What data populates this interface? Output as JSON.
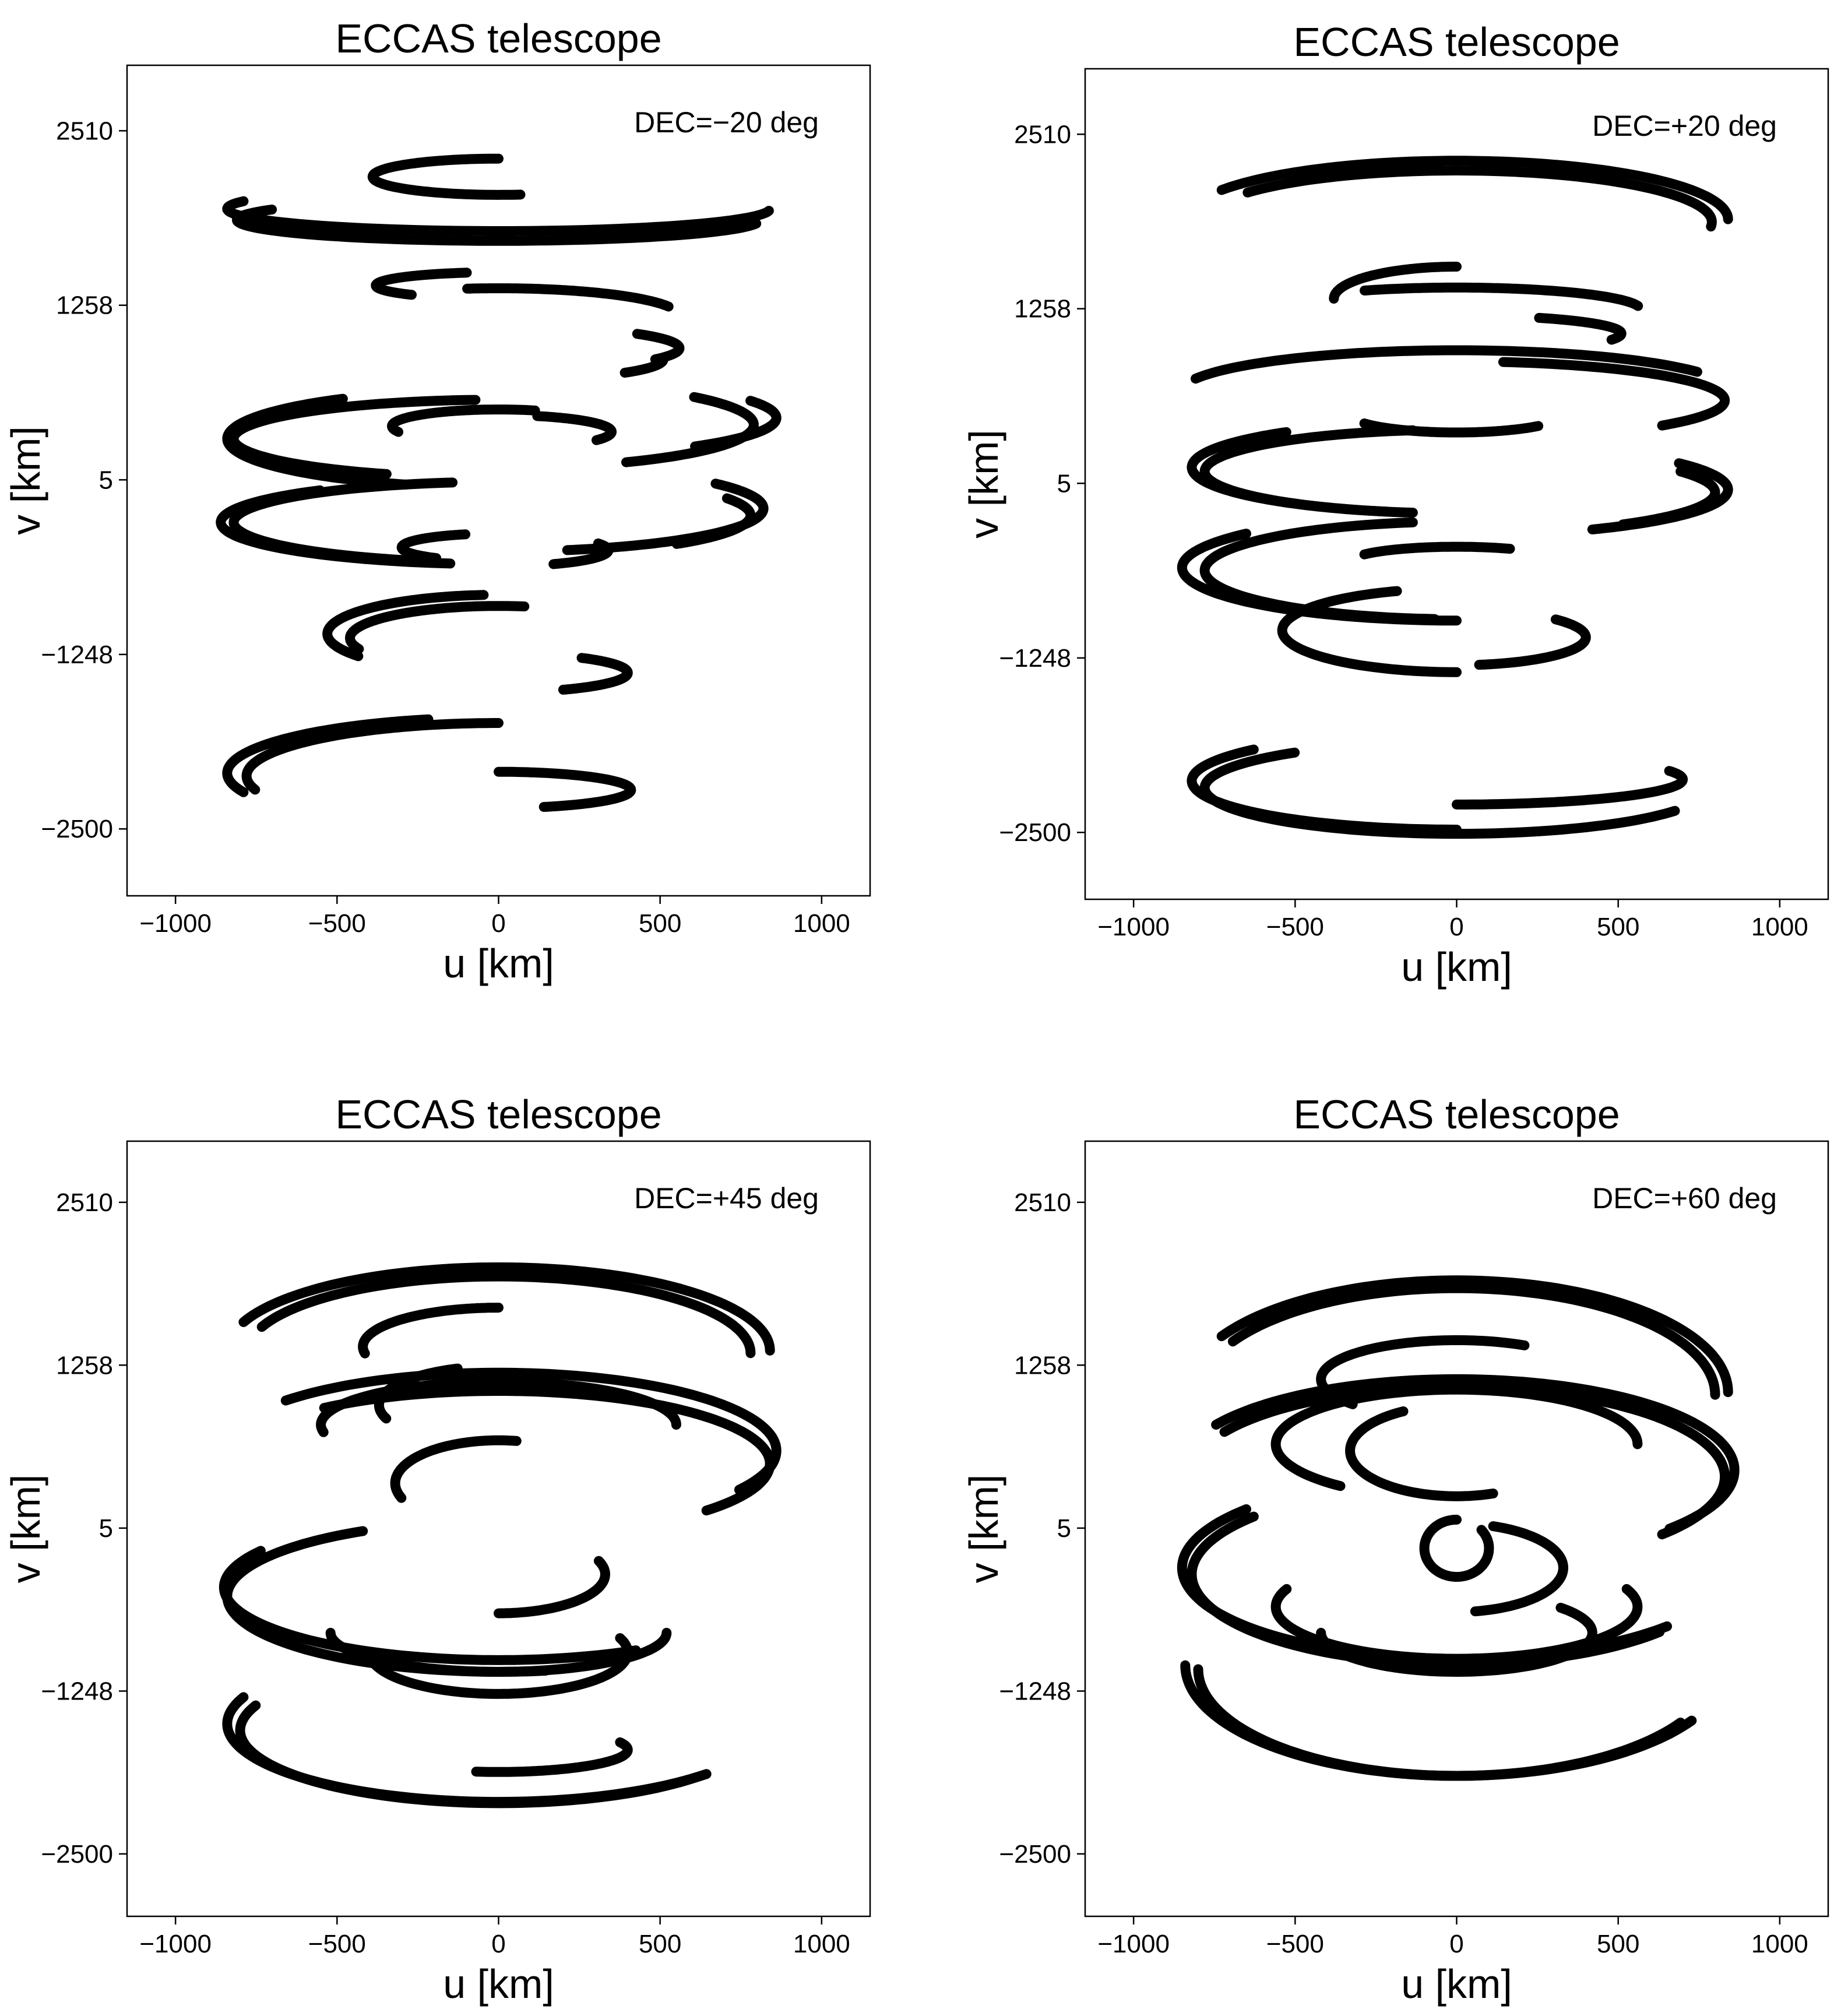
{
  "chart_data": [
    {
      "type": "scatter",
      "title": "ECCAS telescope",
      "xlabel": "u [km]",
      "ylabel": "v [km]",
      "annotation": "DEC=−20 deg",
      "xlim": [
        -1150,
        1150
      ],
      "ylim": [
        -2980,
        2980
      ],
      "xticks": [
        -1000,
        -500,
        0,
        500,
        1000
      ],
      "xtick_labels": [
        "−1000",
        "−500",
        "0",
        "500",
        "1000"
      ],
      "yticks": [
        2510,
        1258,
        5,
        -1248,
        -2500
      ],
      "ytick_labels": [
        "2510",
        "1258",
        "5",
        "−1248",
        "−2500"
      ],
      "grid": false,
      "tracks": [
        {
          "cx": 0,
          "cy": 2180,
          "rx": 390,
          "ry": 130,
          "t0": 90,
          "t1": 280
        },
        {
          "cx": 0,
          "cy": 1950,
          "rx": 840,
          "ry": 160,
          "t0": 160,
          "t1": 355
        },
        {
          "cx": 0,
          "cy": 1870,
          "rx": 810,
          "ry": 150,
          "t0": 150,
          "t1": 350
        },
        {
          "cx": 0,
          "cy": 1400,
          "rx": 380,
          "ry": 95,
          "t0": 105,
          "t1": 225
        },
        {
          "cx": 0,
          "cy": 1180,
          "rx": 560,
          "ry": 200,
          "t0": 20,
          "t1": 100
        },
        {
          "cx": 0,
          "cy": 950,
          "rx": 560,
          "ry": 160,
          "t0": 330,
          "t1": 400
        },
        {
          "cx": 0,
          "cy": 870,
          "rx": 510,
          "ry": 150,
          "t0": 320,
          "t1": 360
        },
        {
          "cx": 0,
          "cy": 300,
          "rx": 840,
          "ry": 350,
          "t0": 125,
          "t1": 250
        },
        {
          "cx": 0,
          "cy": 300,
          "rx": 820,
          "ry": 280,
          "t0": 95,
          "t1": 245
        },
        {
          "cx": 0,
          "cy": 400,
          "rx": 790,
          "ry": 310,
          "t0": 300,
          "t1": 400
        },
        {
          "cx": 0,
          "cy": 450,
          "rx": 860,
          "ry": 290,
          "t0": 315,
          "t1": 385
        },
        {
          "cx": 0,
          "cy": 390,
          "rx": 330,
          "ry": 120,
          "t0": 70,
          "t1": 200
        },
        {
          "cx": 0,
          "cy": 350,
          "rx": 350,
          "ry": 120,
          "t0": 330,
          "t1": 430
        },
        {
          "cx": 0,
          "cy": -300,
          "rx": 860,
          "ry": 300,
          "t0": 130,
          "t1": 260
        },
        {
          "cx": 0,
          "cy": -300,
          "rx": 820,
          "ry": 290,
          "t0": 100,
          "t1": 255
        },
        {
          "cx": 0,
          "cy": -200,
          "rx": 820,
          "ry": 310,
          "t0": 285,
          "t1": 395
        },
        {
          "cx": 0,
          "cy": -250,
          "rx": 780,
          "ry": 290,
          "t0": 315,
          "t1": 385
        },
        {
          "cx": 0,
          "cy": -500,
          "rx": 340,
          "ry": 115,
          "t0": 300,
          "t1": 385
        },
        {
          "cx": 0,
          "cy": -480,
          "rx": 300,
          "ry": 100,
          "t0": 110,
          "t1": 230
        },
        {
          "cx": 0,
          "cy": -1100,
          "rx": 530,
          "ry": 280,
          "t0": 95,
          "t1": 215
        },
        {
          "cx": 0,
          "cy": -1130,
          "rx": 460,
          "ry": 230,
          "t0": 80,
          "t1": 200
        },
        {
          "cx": 0,
          "cy": -1380,
          "rx": 400,
          "ry": 140,
          "t0": 300,
          "t1": 410
        },
        {
          "cx": 0,
          "cy": -2100,
          "rx": 840,
          "ry": 400,
          "t0": 105,
          "t1": 200
        },
        {
          "cx": 0,
          "cy": -2120,
          "rx": 780,
          "ry": 380,
          "t0": 90,
          "t1": 195
        },
        {
          "cx": 0,
          "cy": -2220,
          "rx": 410,
          "ry": 130,
          "t0": 290,
          "t1": 450
        }
      ]
    },
    {
      "type": "scatter",
      "title": "ECCAS telescope",
      "xlabel": "u [km]",
      "ylabel": "v [km]",
      "annotation": "DEC=+20 deg",
      "xlim": [
        -1150,
        1150
      ],
      "ylim": [
        -2980,
        2980
      ],
      "xticks": [
        -1000,
        -500,
        0,
        500,
        1000
      ],
      "xtick_labels": [
        "−1000",
        "−500",
        "0",
        "500",
        "1000"
      ],
      "yticks": [
        2510,
        1258,
        5,
        -1248,
        -2500
      ],
      "ytick_labels": [
        "2510",
        "1258",
        "5",
        "−1248",
        "−2500"
      ],
      "grid": false,
      "tracks": [
        {
          "cx": 0,
          "cy": 1900,
          "rx": 840,
          "ry": 420,
          "t0": 0,
          "t1": 150
        },
        {
          "cx": 0,
          "cy": 1880,
          "rx": 790,
          "ry": 370,
          "t0": 355,
          "t1": 505
        },
        {
          "cx": 0,
          "cy": 1330,
          "rx": 380,
          "ry": 230,
          "t0": 90,
          "t1": 180
        },
        {
          "cx": 0,
          "cy": 1250,
          "rx": 570,
          "ry": 160,
          "t0": 10,
          "t1": 120
        },
        {
          "cx": 0,
          "cy": 1080,
          "rx": 510,
          "ry": 130,
          "t0": 340,
          "t1": 420
        },
        {
          "cx": 0,
          "cy": 650,
          "rx": 860,
          "ry": 310,
          "t0": 30,
          "t1": 160
        },
        {
          "cx": 0,
          "cy": 600,
          "rx": 830,
          "ry": 280,
          "t0": 320,
          "t1": 440
        },
        {
          "cx": 0,
          "cy": 500,
          "rx": 330,
          "ry": 130,
          "t0": 210,
          "t1": 320
        },
        {
          "cx": 0,
          "cy": 120,
          "rx": 820,
          "ry": 330,
          "t0": 130,
          "t1": 255
        },
        {
          "cx": 0,
          "cy": 90,
          "rx": 780,
          "ry": 300,
          "t0": 100,
          "t1": 260
        },
        {
          "cx": 0,
          "cy": -40,
          "rx": 840,
          "ry": 330,
          "t0": 300,
          "t1": 395
        },
        {
          "cx": 0,
          "cy": -60,
          "rx": 800,
          "ry": 300,
          "t0": 310,
          "t1": 390
        },
        {
          "cx": 0,
          "cy": -600,
          "rx": 850,
          "ry": 380,
          "t0": 140,
          "t1": 270
        },
        {
          "cx": 0,
          "cy": -620,
          "rx": 780,
          "ry": 350,
          "t0": 100,
          "t1": 265
        },
        {
          "cx": 0,
          "cy": -560,
          "rx": 330,
          "ry": 110,
          "t0": 60,
          "t1": 150
        },
        {
          "cx": 0,
          "cy": -1050,
          "rx": 540,
          "ry": 300,
          "t0": 110,
          "t1": 270
        },
        {
          "cx": 0,
          "cy": -1100,
          "rx": 400,
          "ry": 200,
          "t0": 280,
          "t1": 400
        },
        {
          "cx": 0,
          "cy": -2130,
          "rx": 820,
          "ry": 350,
          "t0": 140,
          "t1": 270
        },
        {
          "cx": 0,
          "cy": -2180,
          "rx": 780,
          "ry": 330,
          "t0": 130,
          "t1": 330
        },
        {
          "cx": 0,
          "cy": -2120,
          "rx": 700,
          "ry": 180,
          "t0": 270,
          "t1": 380
        }
      ]
    },
    {
      "type": "scatter",
      "title": "ECCAS telescope",
      "xlabel": "u [km]",
      "ylabel": "v [km]",
      "annotation": "DEC=+45 deg",
      "xlim": [
        -1150,
        1150
      ],
      "ylim": [
        -2980,
        2980
      ],
      "xticks": [
        -1000,
        -500,
        0,
        500,
        1000
      ],
      "xtick_labels": [
        "−1000",
        "−500",
        "0",
        "500",
        "1000"
      ],
      "yticks": [
        2510,
        1258,
        5,
        -1248,
        -2500
      ],
      "ytick_labels": [
        "2510",
        "1258",
        "5",
        "−1248",
        "−2500"
      ],
      "grid": false,
      "tracks": [
        {
          "cx": 0,
          "cy": 1370,
          "rx": 840,
          "ry": 640,
          "t0": 0,
          "t1": 160
        },
        {
          "cx": 0,
          "cy": 1350,
          "rx": 780,
          "ry": 590,
          "t0": 0,
          "t1": 160
        },
        {
          "cx": 0,
          "cy": 1400,
          "rx": 420,
          "ry": 300,
          "t0": 90,
          "t1": 190
        },
        {
          "cx": 0,
          "cy": 600,
          "rx": 860,
          "ry": 600,
          "t0": 330,
          "t1": 500
        },
        {
          "cx": 0,
          "cy": 500,
          "rx": 840,
          "ry": 560,
          "t0": 320,
          "t1": 490
        },
        {
          "cx": 0,
          "cy": 950,
          "rx": 370,
          "ry": 300,
          "t0": 110,
          "t1": 200
        },
        {
          "cx": 0,
          "cy": 800,
          "rx": 550,
          "ry": 330,
          "t0": 0,
          "t1": 190
        },
        {
          "cx": 0,
          "cy": 350,
          "rx": 320,
          "ry": 330,
          "t0": 80,
          "t1": 200
        },
        {
          "cx": 0,
          "cy": -450,
          "rx": 850,
          "ry": 560,
          "t0": 150,
          "t1": 300
        },
        {
          "cx": 0,
          "cy": -520,
          "rx": 840,
          "ry": 580,
          "t0": 120,
          "t1": 280
        },
        {
          "cx": 0,
          "cy": -800,
          "rx": 520,
          "ry": 300,
          "t0": 180,
          "t1": 360
        },
        {
          "cx": 0,
          "cy": -950,
          "rx": 400,
          "ry": 320,
          "t0": 190,
          "t1": 380
        },
        {
          "cx": 0,
          "cy": -350,
          "rx": 330,
          "ry": 300,
          "t0": 270,
          "t1": 380
        },
        {
          "cx": 0,
          "cy": -1500,
          "rx": 840,
          "ry": 600,
          "t0": 160,
          "t1": 320
        },
        {
          "cx": 0,
          "cy": -1550,
          "rx": 800,
          "ry": 560,
          "t0": 160,
          "t1": 320
        },
        {
          "cx": 0,
          "cy": -1700,
          "rx": 400,
          "ry": 170,
          "t0": 260,
          "t1": 380
        }
      ]
    },
    {
      "type": "scatter",
      "title": "ECCAS telescope",
      "xlabel": "u [km]",
      "ylabel": "v [km]",
      "annotation": "DEC=+60 deg",
      "xlim": [
        -1150,
        1150
      ],
      "ylim": [
        -2980,
        2980
      ],
      "xticks": [
        -1000,
        -500,
        0,
        500,
        1000
      ],
      "xtick_labels": [
        "−1000",
        "−500",
        "0",
        "500",
        "1000"
      ],
      "yticks": [
        2510,
        1258,
        5,
        -1248,
        -2500
      ],
      "ytick_labels": [
        "2510",
        "1258",
        "5",
        "−1248",
        "−2500"
      ],
      "grid": false,
      "tracks": [
        {
          "cx": 0,
          "cy": 1050,
          "rx": 840,
          "ry": 860,
          "t0": 0,
          "t1": 150
        },
        {
          "cx": 0,
          "cy": 1030,
          "rx": 800,
          "ry": 820,
          "t0": 0,
          "t1": 150
        },
        {
          "cx": 0,
          "cy": 1150,
          "rx": 420,
          "ry": 300,
          "t0": 60,
          "t1": 220
        },
        {
          "cx": 0,
          "cy": 450,
          "rx": 860,
          "ry": 700,
          "t0": 320,
          "t1": 510
        },
        {
          "cx": 0,
          "cy": 400,
          "rx": 830,
          "ry": 690,
          "t0": 320,
          "t1": 510
        },
        {
          "cx": 0,
          "cy": 650,
          "rx": 560,
          "ry": 420,
          "t0": 0,
          "t1": 230
        },
        {
          "cx": 0,
          "cy": 600,
          "rx": 330,
          "ry": 350,
          "t0": 120,
          "t1": 290
        },
        {
          "cx": 0,
          "cy": -300,
          "rx": 850,
          "ry": 700,
          "t0": 140,
          "t1": 320
        },
        {
          "cx": 0,
          "cy": -350,
          "rx": 820,
          "ry": 690,
          "t0": 140,
          "t1": 320
        },
        {
          "cx": 0,
          "cy": -600,
          "rx": 560,
          "ry": 400,
          "t0": 160,
          "t1": 380
        },
        {
          "cx": 0,
          "cy": -800,
          "rx": 420,
          "ry": 300,
          "t0": 180,
          "t1": 400
        },
        {
          "cx": 0,
          "cy": -300,
          "rx": 330,
          "ry": 340,
          "t0": 280,
          "t1": 430
        },
        {
          "cx": 0,
          "cy": -1050,
          "rx": 840,
          "ry": 850,
          "t0": 180,
          "t1": 330
        },
        {
          "cx": 0,
          "cy": -1080,
          "rx": 800,
          "ry": 820,
          "t0": 180,
          "t1": 330
        },
        {
          "cx": 0,
          "cy": -150,
          "rx": 100,
          "ry": 220,
          "t0": 90,
          "t1": 400
        }
      ]
    }
  ]
}
